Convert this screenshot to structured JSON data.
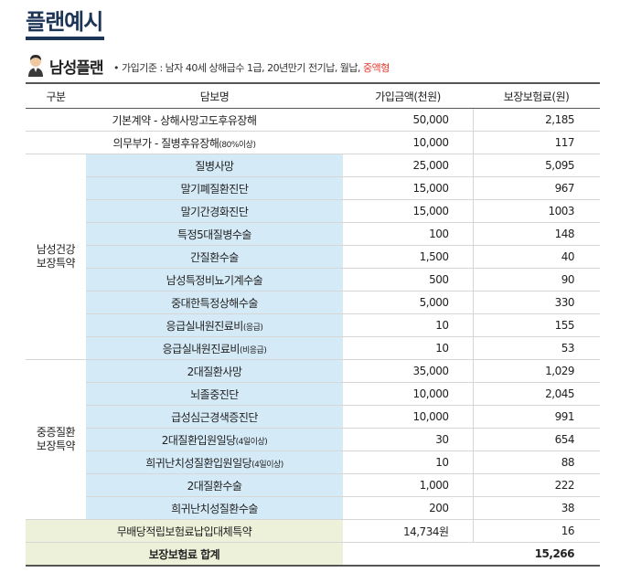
{
  "page_title": "플랜예시",
  "plan": {
    "name": "남성플랜",
    "note_prefix": "• 가입기준 : 남자 40세 상해급수 1급, 20년만기 전기납, 월납, ",
    "note_highlight": "중액형"
  },
  "columns": {
    "group": "구분",
    "coverage": "담보명",
    "amount": "가입금액(천원)",
    "premium": "보장보험료(원)"
  },
  "top_rows": [
    {
      "name": "기본계약 - 상해사망고도후유장해",
      "small": "",
      "amount": "50,000",
      "premium": "2,185"
    },
    {
      "name": "의무부가 - 질병후유장해",
      "small": "(80%이상)",
      "amount": "10,000",
      "premium": "117"
    }
  ],
  "groups": [
    {
      "label_line1": "남성건강",
      "label_line2": "보장특약",
      "rows": [
        {
          "name": "질병사망",
          "small": "",
          "amount": "25,000",
          "premium": "5,095"
        },
        {
          "name": "말기폐질환진단",
          "small": "",
          "amount": "15,000",
          "premium": "967"
        },
        {
          "name": "말기간경화진단",
          "small": "",
          "amount": "15,000",
          "premium": "1003"
        },
        {
          "name": "특정5대질병수술",
          "small": "",
          "amount": "100",
          "premium": "148"
        },
        {
          "name": "간질환수술",
          "small": "",
          "amount": "1,500",
          "premium": "40"
        },
        {
          "name": "남성특정비뇨기계수술",
          "small": "",
          "amount": "500",
          "premium": "90"
        },
        {
          "name": "중대한특정상해수술",
          "small": "",
          "amount": "5,000",
          "premium": "330"
        },
        {
          "name": "응급실내원진료비",
          "small": "(응급)",
          "amount": "10",
          "premium": "155"
        },
        {
          "name": "응급실내원진료비",
          "small": "(비응급)",
          "amount": "10",
          "premium": "53"
        }
      ]
    },
    {
      "label_line1": "중증질환",
      "label_line2": "보장특약",
      "rows": [
        {
          "name": "2대질환사망",
          "small": "",
          "amount": "35,000",
          "premium": "1,029"
        },
        {
          "name": "뇌졸중진단",
          "small": "",
          "amount": "10,000",
          "premium": "2,045"
        },
        {
          "name": "급성심근경색증진단",
          "small": "",
          "amount": "10,000",
          "premium": "991"
        },
        {
          "name": "2대질환입원일당",
          "small": "(4일이상)",
          "amount": "30",
          "premium": "654"
        },
        {
          "name": "희귀난치성질환입원일당",
          "small": "(4일이상)",
          "amount": "10",
          "premium": "88"
        },
        {
          "name": "2대질환수술",
          "small": "",
          "amount": "1,000",
          "premium": "222"
        },
        {
          "name": "희귀난치성질환수술",
          "small": "",
          "amount": "200",
          "premium": "38"
        }
      ]
    }
  ],
  "waiver_row": {
    "name": "무배당적립보험료납입대체특약",
    "amount": "14,734원",
    "premium": "16"
  },
  "total_row": {
    "label": "보장보험료 합계",
    "premium": "15,266"
  }
}
